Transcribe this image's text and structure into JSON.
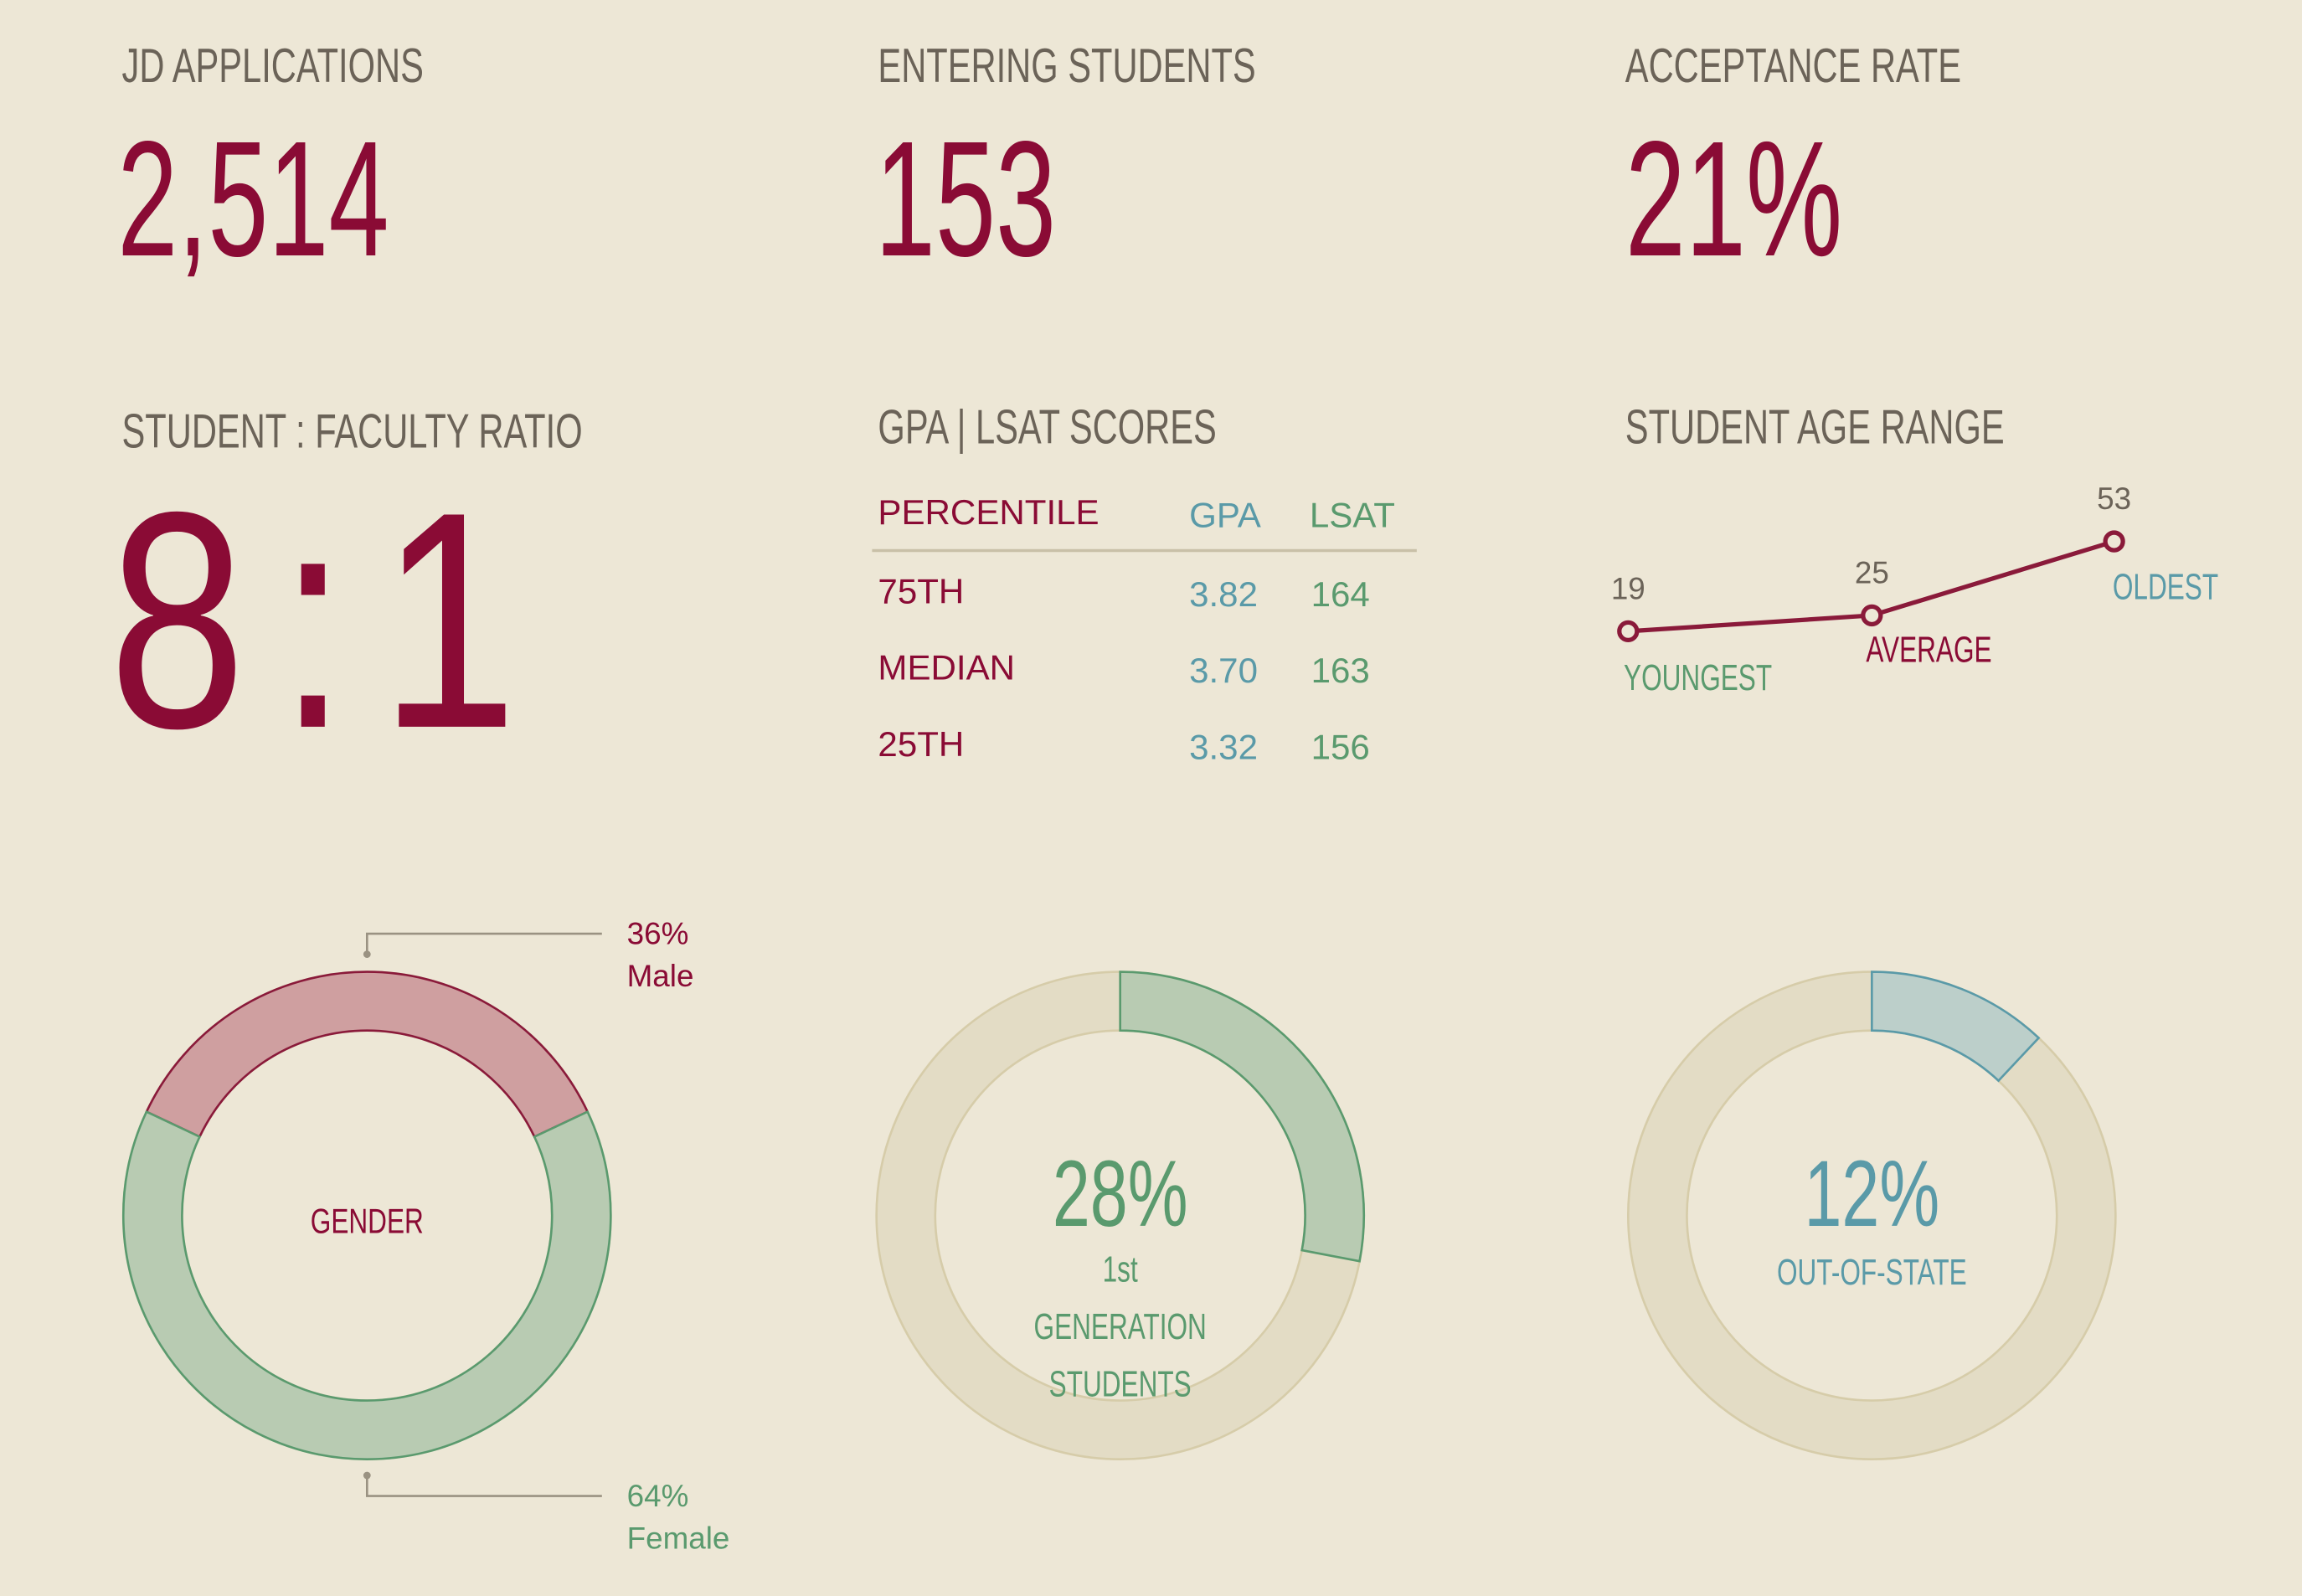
{
  "stats": [
    {
      "label": "JD APPLICATIONS",
      "value": "2,514"
    },
    {
      "label": "ENTERING STUDENTS",
      "value": "153"
    },
    {
      "label": "ACCEPTANCE RATE",
      "value": "21%"
    }
  ],
  "ratio": {
    "label": "STUDENT : FACULTY RATIO",
    "value": "8:1"
  },
  "scores": {
    "title": "GPA | LSAT SCORES",
    "columns": [
      "PERCENTILE",
      "GPA",
      "LSAT"
    ],
    "rows": [
      [
        "75TH",
        "3.82",
        "164"
      ],
      [
        "MEDIAN",
        "3.70",
        "163"
      ],
      [
        "25TH",
        "3.32",
        "156"
      ]
    ]
  },
  "age": {
    "type": "line",
    "title": "STUDENT AGE RANGE",
    "categories": [
      "YOUNGEST",
      "AVERAGE",
      "OLDEST"
    ],
    "values": [
      19,
      25,
      53
    ],
    "color": "#8a1a3a"
  },
  "gender": {
    "type": "donut",
    "title": "GENDER",
    "categories": [
      "Male",
      "Female"
    ],
    "values": [
      36,
      64
    ],
    "value_labels": [
      "36%",
      "64%"
    ],
    "colors": [
      "#cf9fa0",
      "#b8cbb2"
    ],
    "strokes": [
      "#8a1a3a",
      "#5a9a6e"
    ]
  },
  "first_gen": {
    "type": "donut",
    "title": "1st GENERATION STUDENTS",
    "values": [
      28
    ],
    "value_labels": [
      "28%"
    ],
    "colors": [
      "#b8cbb2"
    ],
    "strokes": [
      "#5a9a6e"
    ]
  },
  "out_of_state": {
    "type": "donut",
    "title": "OUT-OF-STATE",
    "values": [
      12
    ],
    "value_labels": [
      "12%"
    ],
    "colors": [
      "#bccfca"
    ],
    "strokes": [
      "#5a9aa8"
    ]
  }
}
